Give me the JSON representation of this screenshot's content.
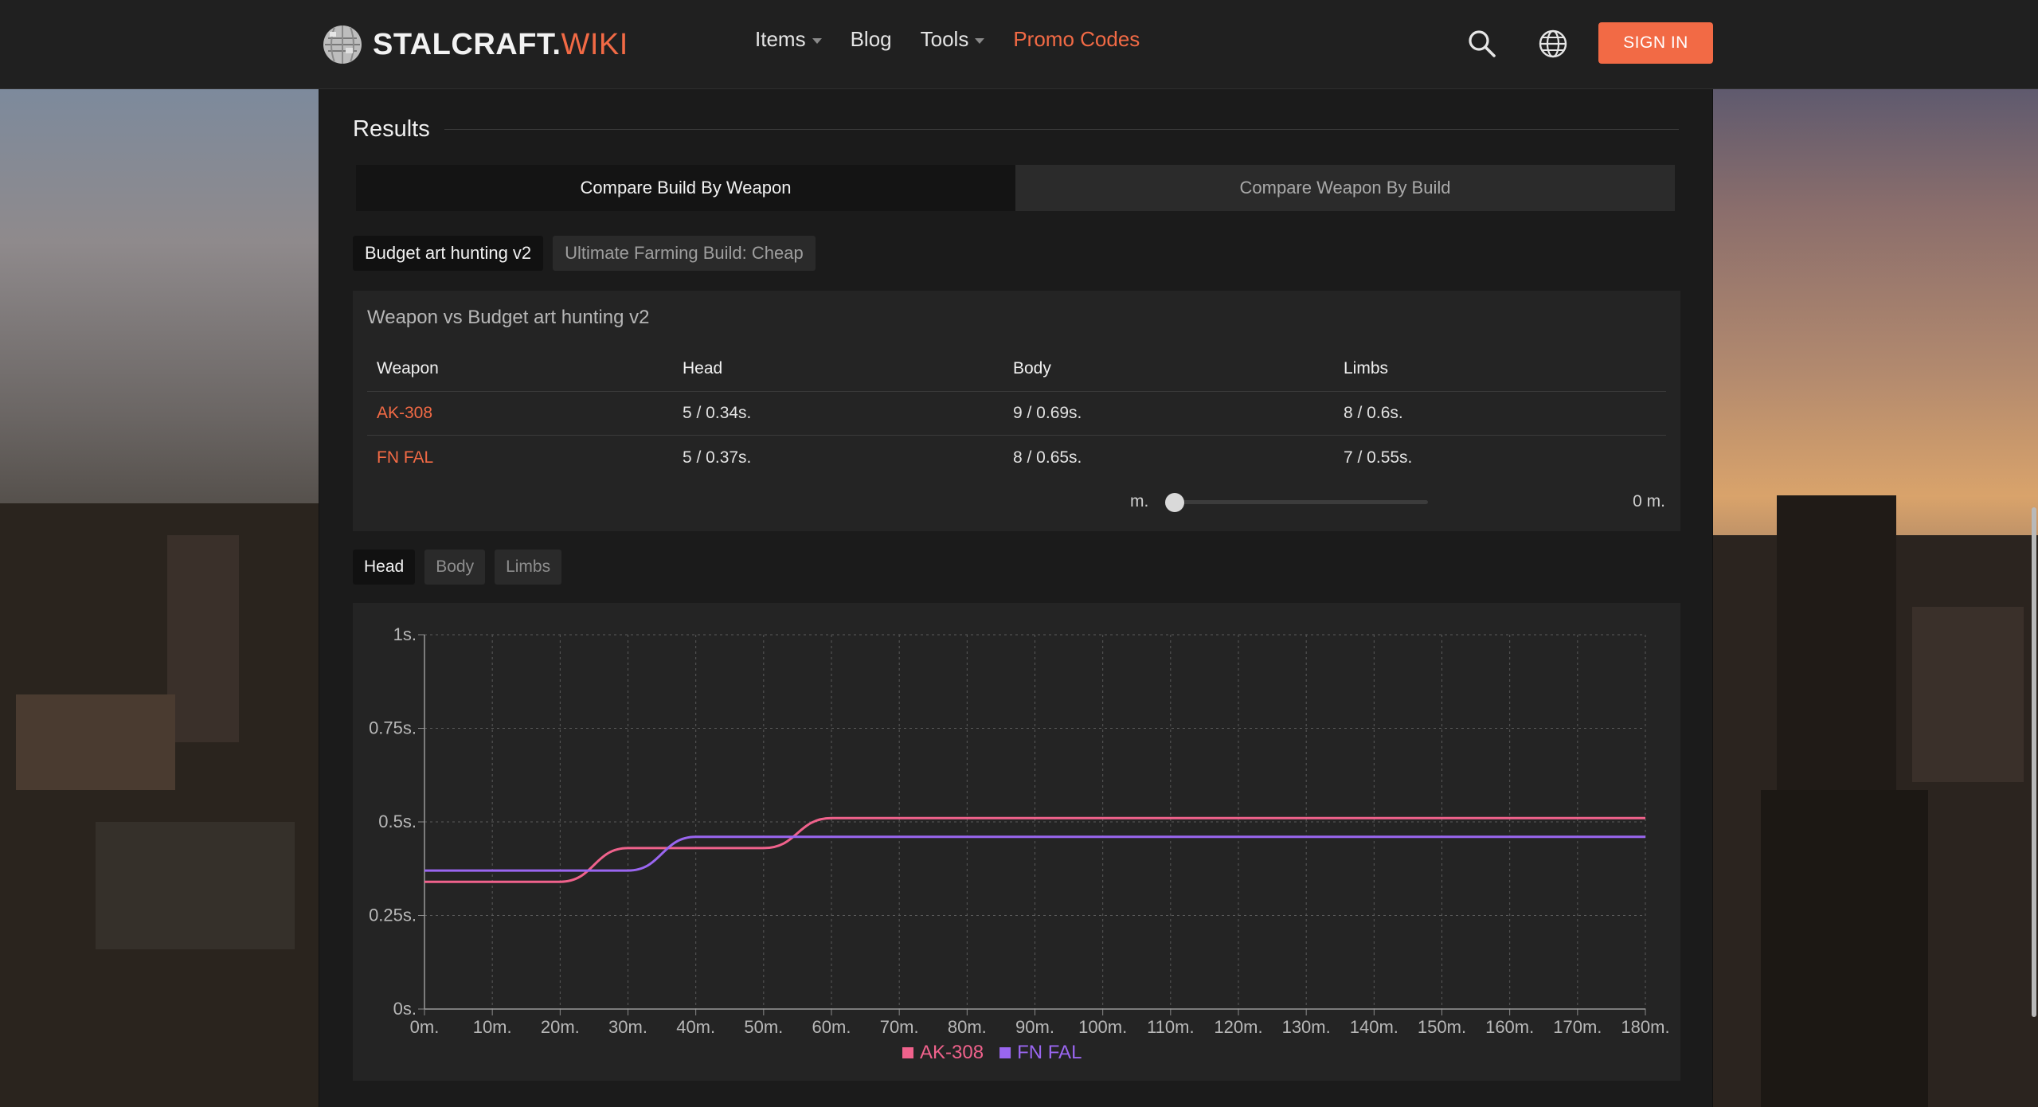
{
  "brand": {
    "name": "STALCRAFT.",
    "suffix": "WIKI"
  },
  "nav": [
    {
      "label": "Items",
      "dropdown": true
    },
    {
      "label": "Blog",
      "dropdown": false
    },
    {
      "label": "Tools",
      "dropdown": true
    },
    {
      "label": "Promo Codes",
      "dropdown": false
    }
  ],
  "header": {
    "signin_label": "SIGN IN",
    "search_icon": "search-icon",
    "language_icon": "globe-icon"
  },
  "results": {
    "title": "Results",
    "compare_tabs": [
      "Compare Build By Weapon",
      "Compare Weapon By Build"
    ],
    "builds": [
      "Budget art hunting v2",
      "Ultimate Farming Build: Cheap"
    ],
    "card_title": "Weapon vs Budget art hunting v2",
    "table": {
      "headers": [
        "Weapon",
        "Head",
        "Body",
        "Limbs"
      ],
      "rows": [
        [
          "AK-308",
          "5 / 0.34s.",
          "9 / 0.69s.",
          "8 / 0.6s."
        ],
        [
          "FN FAL",
          "5 / 0.37s.",
          "8 / 0.65s.",
          "7 / 0.55s."
        ]
      ]
    },
    "distance": {
      "unit": "m.",
      "value": "0 m."
    },
    "part_tabs": [
      "Head",
      "Body",
      "Limbs"
    ]
  },
  "colors": {
    "accent": "#f26a45",
    "ak308": "#f0628c",
    "fnfal": "#9a66f0"
  },
  "chart_data": {
    "type": "line",
    "x": [
      0,
      10,
      20,
      30,
      40,
      50,
      60,
      70,
      80,
      90,
      100,
      110,
      120,
      130,
      140,
      150,
      160,
      170,
      180
    ],
    "x_tick_labels": [
      "0m.",
      "10m.",
      "20m.",
      "30m.",
      "40m.",
      "50m.",
      "60m.",
      "70m.",
      "80m.",
      "90m.",
      "100m.",
      "110m.",
      "120m.",
      "130m.",
      "140m.",
      "150m.",
      "160m.",
      "170m.",
      "180m."
    ],
    "y_ticks": [
      0,
      0.25,
      0.5,
      0.75,
      1
    ],
    "y_tick_labels": [
      "0s.",
      "0.25s.",
      "0.5s.",
      "0.75s.",
      "1s."
    ],
    "ylim": [
      0,
      1
    ],
    "xlim": [
      0,
      180
    ],
    "grid": true,
    "legend_position": "bottom-center",
    "series": [
      {
        "name": "AK-308",
        "color": "#f0628c",
        "values": [
          0.34,
          0.34,
          0.34,
          0.43,
          0.43,
          0.43,
          0.51,
          0.51,
          0.51,
          0.51,
          0.51,
          0.51,
          0.51,
          0.51,
          0.51,
          0.51,
          0.51,
          0.51,
          0.51
        ]
      },
      {
        "name": "FN FAL",
        "color": "#9a66f0",
        "values": [
          0.37,
          0.37,
          0.37,
          0.37,
          0.46,
          0.46,
          0.46,
          0.46,
          0.46,
          0.46,
          0.46,
          0.46,
          0.46,
          0.46,
          0.46,
          0.46,
          0.46,
          0.46,
          0.46
        ]
      }
    ]
  }
}
